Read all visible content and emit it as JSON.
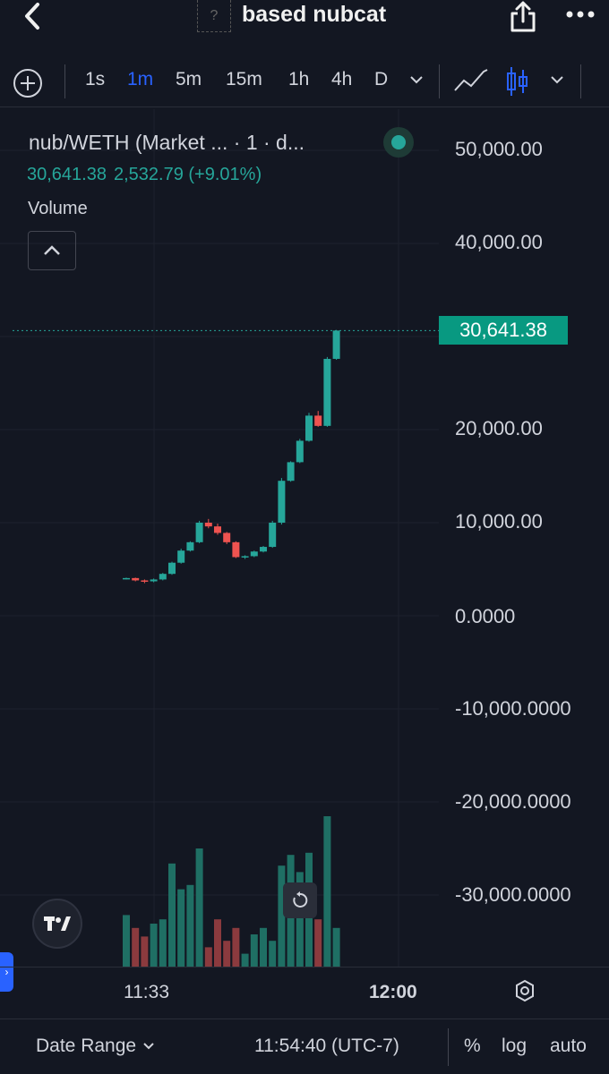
{
  "header": {
    "title": "based nubcat",
    "token_icon_glyph": "?",
    "icons": [
      "back-icon",
      "share-icon",
      "more-icon"
    ]
  },
  "toolbar": {
    "intervals": [
      "1s",
      "1m",
      "5m",
      "15m",
      "1h",
      "4h",
      "D"
    ],
    "active_interval": "1m",
    "chart_style": "candles"
  },
  "legend": {
    "title": "nub/WETH (Market ...  · 1 · d...",
    "last": "30,641.38",
    "change": "2,532.79 (+9.01%)",
    "volume_label": "Volume"
  },
  "price_axis": {
    "labels": [
      "50,000.00",
      "40,000.00",
      "20,000.00",
      "10,000.00",
      "0.0000",
      "-10,000.0000",
      "-20,000.0000",
      "-30,000.0000"
    ],
    "last_price_tag": "30,641.38"
  },
  "time_axis": {
    "labels": [
      "11:33",
      "12:00"
    ]
  },
  "bottom_bar": {
    "date_range": "Date Range",
    "clock": "11:54:40 (UTC-7)",
    "percent": "%",
    "log": "log",
    "auto": "auto"
  },
  "colors": {
    "background": "#131722",
    "up": "#26a69a",
    "down": "#ef5350",
    "accent": "#2962ff"
  },
  "chart_data": {
    "type": "candlestick",
    "y_range": [
      -36000,
      55000
    ],
    "last_price": 30641.38,
    "candles": [
      {
        "o": 4000,
        "h": 4100,
        "l": 3900,
        "c": 4050
      },
      {
        "o": 4050,
        "h": 4100,
        "l": 3700,
        "c": 3800
      },
      {
        "o": 3800,
        "h": 3900,
        "l": 3500,
        "c": 3700
      },
      {
        "o": 3700,
        "h": 4000,
        "l": 3600,
        "c": 3900
      },
      {
        "o": 3900,
        "h": 4600,
        "l": 3800,
        "c": 4500
      },
      {
        "o": 4500,
        "h": 5800,
        "l": 4400,
        "c": 5700
      },
      {
        "o": 5700,
        "h": 7200,
        "l": 5600,
        "c": 7000
      },
      {
        "o": 7000,
        "h": 8000,
        "l": 6900,
        "c": 7900
      },
      {
        "o": 7900,
        "h": 10200,
        "l": 7800,
        "c": 10000
      },
      {
        "o": 10000,
        "h": 10400,
        "l": 9400,
        "c": 9600
      },
      {
        "o": 9600,
        "h": 9900,
        "l": 8700,
        "c": 8900
      },
      {
        "o": 8900,
        "h": 9000,
        "l": 7700,
        "c": 7900
      },
      {
        "o": 7900,
        "h": 8000,
        "l": 6200,
        "c": 6300
      },
      {
        "o": 6300,
        "h": 6500,
        "l": 6100,
        "c": 6400
      },
      {
        "o": 6400,
        "h": 7000,
        "l": 6300,
        "c": 6900
      },
      {
        "o": 6900,
        "h": 7500,
        "l": 6800,
        "c": 7400
      },
      {
        "o": 7400,
        "h": 10200,
        "l": 7300,
        "c": 10000
      },
      {
        "o": 10000,
        "h": 14800,
        "l": 9800,
        "c": 14500
      },
      {
        "o": 14500,
        "h": 16600,
        "l": 14400,
        "c": 16500
      },
      {
        "o": 16500,
        "h": 19000,
        "l": 16400,
        "c": 18800
      },
      {
        "o": 18800,
        "h": 21800,
        "l": 18700,
        "c": 21500
      },
      {
        "o": 21500,
        "h": 22000,
        "l": 20300,
        "c": 20400
      },
      {
        "o": 20400,
        "h": 27800,
        "l": 20300,
        "c": 27600
      },
      {
        "o": 27600,
        "h": 30700,
        "l": 27500,
        "c": 30641.38
      }
    ],
    "volume": [
      24,
      18,
      14,
      20,
      22,
      48,
      36,
      38,
      55,
      9,
      22,
      12,
      18,
      6,
      15,
      18,
      12,
      47,
      52,
      44,
      53,
      22,
      70,
      18
    ]
  }
}
